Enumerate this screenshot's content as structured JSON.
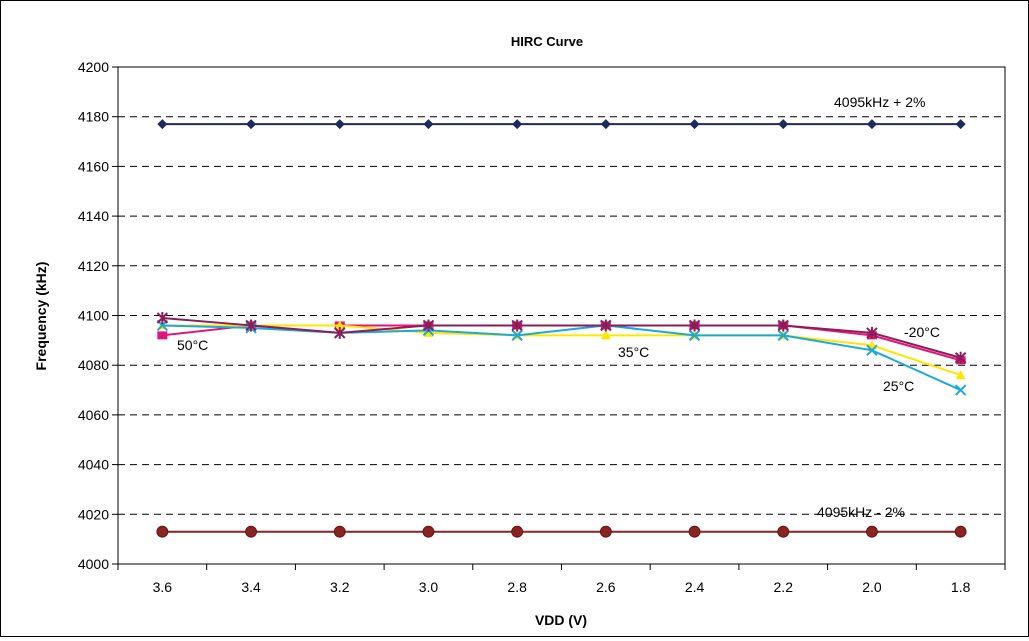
{
  "chart_data": {
    "type": "line",
    "title": "HIRC Curve",
    "xlabel": "VDD (V)",
    "ylabel": "Frequency (kHz)",
    "categories": [
      "3.6",
      "3.4",
      "3.2",
      "3.0",
      "2.8",
      "2.6",
      "2.4",
      "2.2",
      "2.0",
      "1.8"
    ],
    "ylim": [
      4000,
      4200
    ],
    "yticks": [
      "4000",
      "4020",
      "4040",
      "4060",
      "4080",
      "4100",
      "4120",
      "4140",
      "4160",
      "4180",
      "4200"
    ],
    "grid": "horizontal dashed",
    "series": [
      {
        "values": [
          4177,
          4177,
          4177,
          4177,
          4177,
          4177,
          4177,
          4177,
          4177,
          4177
        ],
        "color": "#1f2a5c",
        "marker": "diamond"
      },
      {
        "values": [
          4013,
          4013,
          4013,
          4013,
          4013,
          4013,
          4013,
          4013,
          4013,
          4013
        ],
        "color": "#8b2323",
        "marker": "circle"
      },
      {
        "values": [
          4092,
          4096,
          4096,
          4096,
          4096,
          4096,
          4096,
          4096,
          4092,
          4082
        ],
        "color": "#e0147a",
        "marker": "square"
      },
      {
        "values": [
          4096,
          4096,
          4096,
          4093,
          4092,
          4092,
          4092,
          4092,
          4088,
          4076
        ],
        "color": "#ffe600",
        "marker": "triangle"
      },
      {
        "values": [
          4096,
          4095,
          4093,
          4094,
          4092,
          4096,
          4092,
          4092,
          4086,
          4070
        ],
        "color": "#1ca8dd",
        "marker": "x"
      },
      {
        "values": [
          4099,
          4096,
          4093,
          4096,
          4096,
          4096,
          4096,
          4096,
          4093,
          4083
        ],
        "color": "#8b1e5a",
        "marker": "star"
      }
    ],
    "annotations": [
      "4095kHz + 2%",
      "4095kHz - 2%",
      "50°C",
      "35°C",
      "-20°C",
      "25°C"
    ]
  }
}
